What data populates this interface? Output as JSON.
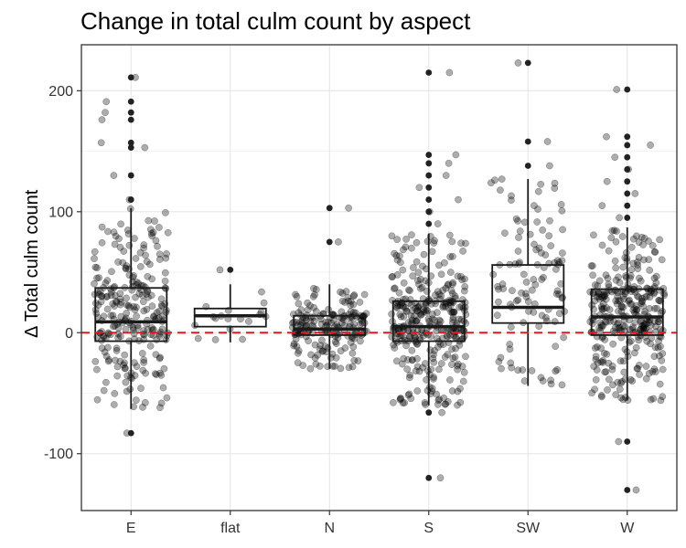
{
  "chart_data": {
    "type": "box",
    "title": "Change in total culm count by aspect",
    "ylabel": "Δ Total culm count",
    "xlabel": "",
    "categories": [
      "E",
      "flat",
      "N",
      "S",
      "SW",
      "W"
    ],
    "ylim": [
      -147,
      238
    ],
    "yticks": [
      -100,
      0,
      100,
      200
    ],
    "reference_line": {
      "y": 0,
      "style": "dashed",
      "color": "#e31a1c"
    },
    "grid": true,
    "boxes": [
      {
        "category": "E",
        "q1": -7,
        "median": 9,
        "q3": 37,
        "whisker_low": -63,
        "whisker_high": 103,
        "outliers": [
          110,
          130,
          153,
          157,
          176,
          182,
          191,
          211,
          -83
        ]
      },
      {
        "category": "flat",
        "q1": 5,
        "median": 14,
        "q3": 20,
        "whisker_low": -8,
        "whisker_high": 40,
        "outliers": [
          52
        ]
      },
      {
        "category": "N",
        "q1": -2,
        "median": 3,
        "q3": 14,
        "whisker_low": -30,
        "whisker_high": 40,
        "outliers": [
          75,
          103
        ]
      },
      {
        "category": "S",
        "q1": -7,
        "median": 5,
        "q3": 26,
        "whisker_low": -60,
        "whisker_high": 82,
        "outliers": [
          90,
          100,
          110,
          120,
          130,
          140,
          147,
          215,
          -66,
          -120
        ]
      },
      {
        "category": "SW",
        "q1": 8,
        "median": 21,
        "q3": 56,
        "whisker_low": -44,
        "whisker_high": 127,
        "outliers": [
          138,
          158,
          223
        ]
      },
      {
        "category": "W",
        "q1": -2,
        "median": 13,
        "q3": 36,
        "whisker_low": -56,
        "whisker_high": 87,
        "outliers": [
          95,
          105,
          115,
          125,
          135,
          145,
          155,
          162,
          201,
          -90,
          -130
        ]
      }
    ]
  }
}
